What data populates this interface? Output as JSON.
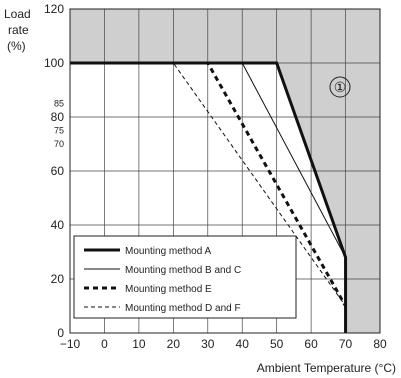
{
  "chart_data": {
    "type": "line",
    "title": "",
    "ylabel_lines": [
      "Load",
      "rate",
      "(%)"
    ],
    "xlabel": "Ambient Temperature (°C)",
    "xlim": [
      -10,
      80
    ],
    "ylim": [
      0,
      120
    ],
    "x_ticks": [
      "−10",
      "0",
      "10",
      "20",
      "30",
      "40",
      "50",
      "60",
      "70",
      "80"
    ],
    "x_tick_values": [
      -10,
      0,
      10,
      20,
      30,
      40,
      50,
      60,
      70,
      80
    ],
    "y_ticks": [
      "0",
      "20",
      "40",
      "60",
      "80",
      "100",
      "120"
    ],
    "y_tick_values": [
      0,
      20,
      40,
      60,
      80,
      100,
      120
    ],
    "y_minor_ticks": [
      "85",
      "75",
      "70"
    ],
    "y_minor_tick_values": [
      85,
      75,
      70
    ],
    "grid": true,
    "legend_position": "bottom-left",
    "annotation": "①",
    "shaded_region_color": "#cfcfcf",
    "series": [
      {
        "name": "Mounting method A",
        "style": "thick-solid",
        "x": [
          -10,
          50,
          70,
          70
        ],
        "y": [
          100,
          100,
          28,
          0
        ]
      },
      {
        "name": "Mounting method B and C",
        "style": "thin-solid",
        "x": [
          -10,
          40,
          70
        ],
        "y": [
          100,
          100,
          28
        ]
      },
      {
        "name": "Mounting method E",
        "style": "thick-dashed",
        "x": [
          -10,
          30,
          70
        ],
        "y": [
          100,
          100,
          10
        ]
      },
      {
        "name": "Mounting method D and F",
        "style": "thin-dashed",
        "x": [
          -10,
          20,
          70
        ],
        "y": [
          100,
          100,
          10
        ]
      }
    ]
  }
}
